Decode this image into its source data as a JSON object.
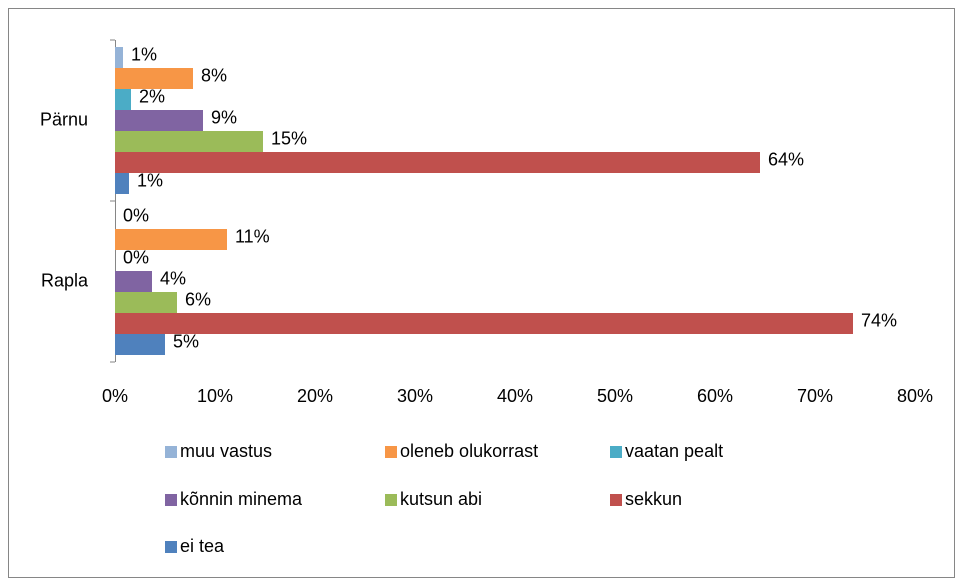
{
  "chart_data": {
    "type": "barh",
    "categories": [
      "Pärnu",
      "Rapla"
    ],
    "series": [
      {
        "name": "muu vastus",
        "color": "#95b3d7",
        "values": [
          0.8,
          0
        ],
        "value_labels": [
          "1%",
          "0%"
        ]
      },
      {
        "name": "oleneb olukorrast",
        "color": "#f79646",
        "values": [
          7.8,
          11.2
        ],
        "value_labels": [
          "8%",
          "11%"
        ]
      },
      {
        "name": "vaatan pealt",
        "color": "#4bacc6",
        "values": [
          1.6,
          0
        ],
        "value_labels": [
          "2%",
          "0%"
        ]
      },
      {
        "name": "kõnnin minema",
        "color": "#8064a2",
        "values": [
          8.8,
          3.7
        ],
        "value_labels": [
          "9%",
          "4%"
        ]
      },
      {
        "name": "kutsun abi",
        "color": "#9bbb59",
        "values": [
          14.8,
          6.2
        ],
        "value_labels": [
          "15%",
          "6%"
        ]
      },
      {
        "name": "sekkun",
        "color": "#c0504d",
        "values": [
          64.5,
          73.8
        ],
        "value_labels": [
          "64%",
          "74%"
        ]
      },
      {
        "name": "ei tea",
        "color": "#4f81bd",
        "values": [
          1.4,
          5.0
        ],
        "value_labels": [
          "1%",
          "5%"
        ]
      }
    ],
    "xlim": [
      0,
      80
    ],
    "xticks": [
      {
        "value": 0,
        "label": "0%"
      },
      {
        "value": 10,
        "label": "10%"
      },
      {
        "value": 20,
        "label": "20%"
      },
      {
        "value": 30,
        "label": "30%"
      },
      {
        "value": 40,
        "label": "40%"
      },
      {
        "value": 50,
        "label": "50%"
      },
      {
        "value": 60,
        "label": "60%"
      },
      {
        "value": 70,
        "label": "70%"
      },
      {
        "value": 80,
        "label": "80%"
      }
    ],
    "legend": "bottom"
  }
}
